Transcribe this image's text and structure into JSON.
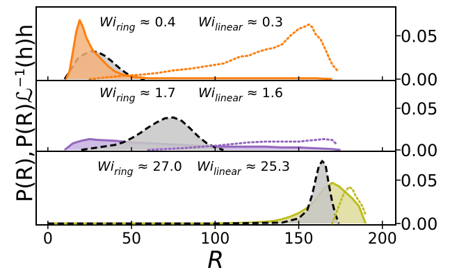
{
  "figure": {
    "ylabel_parts": [
      "P(R),",
      "P(R)ℒ",
      "−1",
      "(h)h"
    ],
    "xlabel": "R"
  },
  "chart_data": {
    "type": "area",
    "shared_x": true,
    "xlim": [
      -7,
      208
    ],
    "xticks": [
      0,
      50,
      100,
      150,
      200
    ],
    "xtick_labels": [
      "0",
      "50",
      "100",
      "150",
      "200"
    ],
    "xlabel": "R",
    "ylim": [
      0,
      0.08
    ],
    "yticks": [
      0,
      0.05
    ],
    "ytick_labels": [
      "0.00",
      "0.05"
    ],
    "panels": [
      {
        "annotation_ring": {
          "sym": "Wi",
          "sub": "ring",
          "val": " ≈ 0.4"
        },
        "annotation_linear": {
          "sym": "Wi",
          "sub": "linear",
          "val": " ≈ 0.3"
        },
        "color": "#ff7f0e",
        "series": [
          {
            "role": "linear-dashed",
            "style": "dashed",
            "color": "#000000",
            "fill": "#c7c7c7",
            "x": [
              10,
              14,
              18,
              22,
              26,
              30,
              34,
              38,
              42,
              46,
              50,
              54,
              58
            ],
            "y": [
              0.0,
              0.012,
              0.024,
              0.029,
              0.032,
              0.031,
              0.027,
              0.021,
              0.014,
              0.008,
              0.003,
              0.001,
              0.0
            ]
          },
          {
            "role": "ring-solid",
            "style": "solid",
            "color": "#ff7f0e",
            "fill": "#f5b27a",
            "x": [
              11,
              13,
              15,
              17,
              19,
              21,
              23,
              25,
              27,
              30,
              33,
              36,
              40,
              45,
              50,
              55,
              60,
              70,
              80,
              100,
              120,
              140,
              160,
              170
            ],
            "y": [
              0.0,
              0.01,
              0.032,
              0.055,
              0.068,
              0.06,
              0.048,
              0.04,
              0.033,
              0.027,
              0.021,
              0.015,
              0.009,
              0.005,
              0.003,
              0.002,
              0.001,
              0.001,
              0.001,
              0.001,
              0.001,
              0.001,
              0.001,
              0.0
            ]
          },
          {
            "role": "ring-dotted",
            "style": "dotted",
            "color": "#ff7f0e",
            "fill": "none",
            "x": [
              25,
              35,
              45,
              55,
              65,
              75,
              85,
              95,
              105,
              110,
              115,
              120,
              125,
              130,
              135,
              140,
              145,
              150,
              153,
              156,
              158,
              160,
              163,
              166,
              168,
              170,
              173
            ],
            "y": [
              0.0,
              0.002,
              0.004,
              0.005,
              0.007,
              0.01,
              0.012,
              0.015,
              0.018,
              0.022,
              0.026,
              0.027,
              0.031,
              0.034,
              0.036,
              0.04,
              0.05,
              0.058,
              0.06,
              0.063,
              0.06,
              0.052,
              0.046,
              0.034,
              0.025,
              0.017,
              0.01
            ]
          }
        ]
      },
      {
        "annotation_ring": {
          "sym": "Wi",
          "sub": "ring",
          "val": " ≈ 1.7"
        },
        "annotation_linear": {
          "sym": "Wi",
          "sub": "linear",
          "val": " ≈ 1.6"
        },
        "color": "#9467bd",
        "series": [
          {
            "role": "ring-solid",
            "style": "solid",
            "color": "#9467bd",
            "fill": "#c5b0e0",
            "x": [
              10,
              15,
              20,
              25,
              30,
              40,
              50,
              60,
              70,
              80,
              90,
              100,
              110,
              120,
              130,
              140,
              150,
              160,
              170,
              175
            ],
            "y": [
              0.0,
              0.008,
              0.011,
              0.013,
              0.012,
              0.011,
              0.009,
              0.008,
              0.007,
              0.006,
              0.005,
              0.004,
              0.004,
              0.004,
              0.004,
              0.003,
              0.003,
              0.002,
              0.001,
              0.0
            ]
          },
          {
            "role": "linear-dashed",
            "style": "dashed",
            "color": "#000000",
            "fill": "#c7c7c7",
            "x": [
              20,
              30,
              40,
              45,
              50,
              55,
              60,
              65,
              70,
              75,
              80,
              85,
              90,
              95,
              100,
              105
            ],
            "y": [
              0.0,
              0.003,
              0.006,
              0.009,
              0.014,
              0.02,
              0.027,
              0.033,
              0.038,
              0.039,
              0.035,
              0.026,
              0.016,
              0.008,
              0.003,
              0.0
            ]
          },
          {
            "role": "ring-dotted",
            "style": "dotted",
            "color": "#9467bd",
            "fill": "none",
            "x": [
              60,
              80,
              100,
              110,
              120,
              130,
              140,
              150,
              160,
              165,
              170,
              173
            ],
            "y": [
              0.0,
              0.002,
              0.005,
              0.007,
              0.009,
              0.01,
              0.01,
              0.01,
              0.012,
              0.013,
              0.012,
              0.006
            ]
          }
        ]
      },
      {
        "annotation_ring": {
          "sym": "Wi",
          "sub": "ring",
          "val": " ≈ 27.0"
        },
        "annotation_linear": {
          "sym": "Wi",
          "sub": "linear",
          "val": " ≈ 25.3"
        },
        "color": "#bcbd22",
        "series": [
          {
            "role": "ring-solid",
            "style": "solid",
            "color": "#bcbd22",
            "fill": "#dedc9a",
            "x": [
              0,
              50,
              100,
              120,
              130,
              135,
              140,
              145,
              150,
              155,
              160,
              165,
              170,
              174,
              178,
              182,
              186,
              190
            ],
            "y": [
              0.0,
              0.0,
              0.0,
              0.001,
              0.002,
              0.003,
              0.005,
              0.008,
              0.012,
              0.018,
              0.027,
              0.04,
              0.047,
              0.043,
              0.036,
              0.029,
              0.02,
              0.0
            ]
          },
          {
            "role": "linear-dashed",
            "style": "dashed",
            "color": "#000000",
            "fill": "#c7c7c7",
            "x": [
              0,
              100,
              140,
              150,
              155,
              158,
              160,
              162,
              164,
              166,
              168,
              170,
              172,
              174
            ],
            "y": [
              0.0,
              0.0,
              0.001,
              0.006,
              0.015,
              0.033,
              0.05,
              0.066,
              0.072,
              0.068,
              0.045,
              0.025,
              0.01,
              0.0
            ]
          },
          {
            "role": "ring-dotted",
            "style": "dotted",
            "color": "#bcbd22",
            "fill": "none",
            "x": [
              170,
              174,
              177,
              180,
              182,
              184,
              186,
              188,
              190
            ],
            "y": [
              0.0,
              0.02,
              0.035,
              0.042,
              0.04,
              0.032,
              0.026,
              0.02,
              0.01
            ]
          }
        ]
      }
    ]
  }
}
